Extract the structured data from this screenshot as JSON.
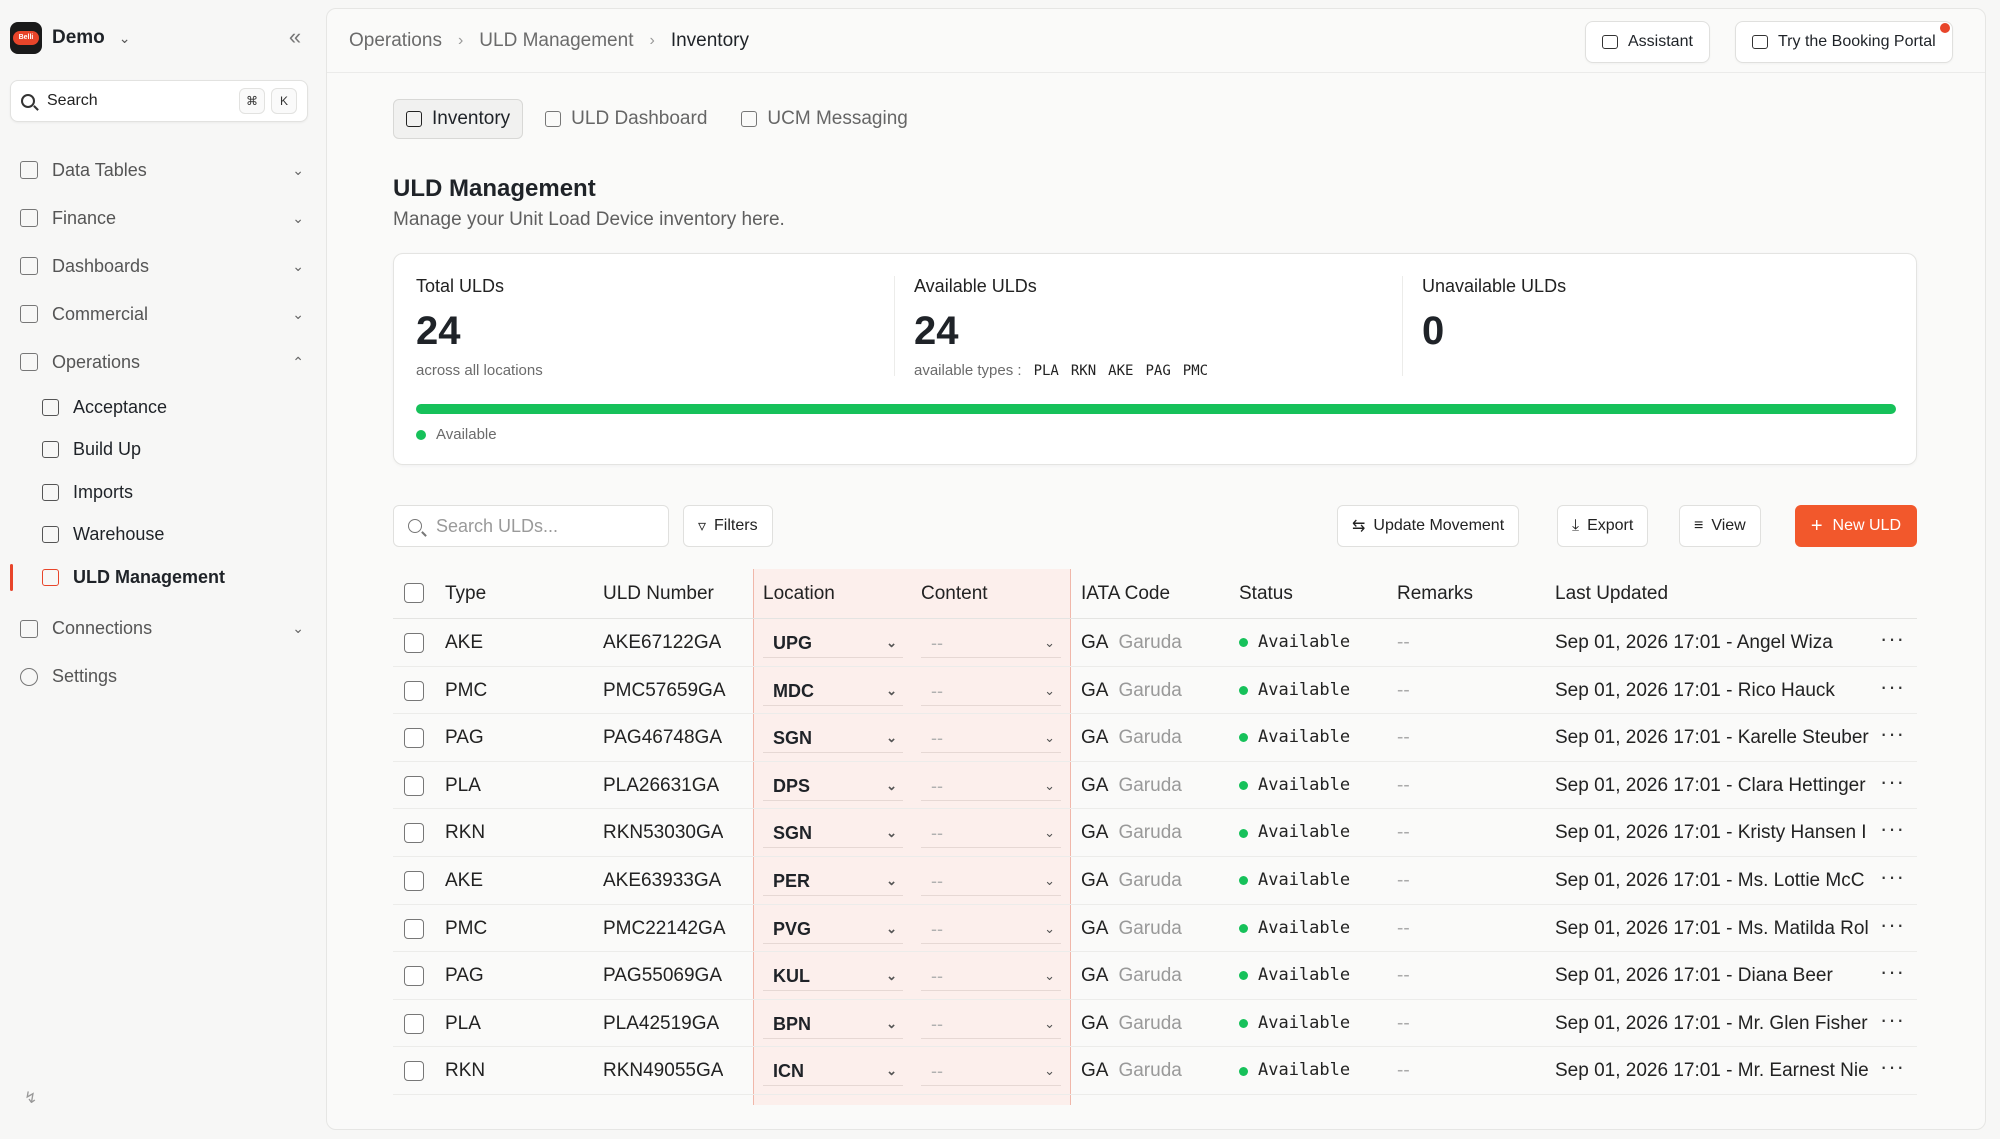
{
  "sidebar": {
    "workspace": "Demo",
    "logo_text": "Belli",
    "search_label": "Search",
    "search_keys": [
      "⌘",
      "K"
    ],
    "items": [
      {
        "label": "Data Tables"
      },
      {
        "label": "Finance"
      },
      {
        "label": "Dashboards"
      },
      {
        "label": "Commercial"
      },
      {
        "label": "Operations"
      }
    ],
    "ops_sub": [
      {
        "label": "Acceptance"
      },
      {
        "label": "Build Up"
      },
      {
        "label": "Imports"
      },
      {
        "label": "Warehouse"
      },
      {
        "label": "ULD Management"
      }
    ],
    "bottom_items": [
      {
        "label": "Connections"
      },
      {
        "label": "Settings"
      }
    ]
  },
  "header": {
    "breadcrumb": [
      "Operations",
      "ULD Management",
      "Inventory"
    ],
    "assistant_label": "Assistant",
    "booking_label": "Try the Booking Portal"
  },
  "tabs": [
    {
      "label": "Inventory"
    },
    {
      "label": "ULD Dashboard"
    },
    {
      "label": "UCM Messaging"
    }
  ],
  "page": {
    "title": "ULD Management",
    "subtitle": "Manage your Unit Load Device inventory here."
  },
  "stats": {
    "total": {
      "label": "Total ULDs",
      "value": "24",
      "note": "across all locations"
    },
    "available": {
      "label": "Available ULDs",
      "value": "24",
      "note": "available types :",
      "types": [
        "PLA",
        "RKN",
        "AKE",
        "PAG",
        "PMC"
      ]
    },
    "unavailable": {
      "label": "Unavailable ULDs",
      "value": "0"
    },
    "available_fraction": 1.0,
    "legend": "Available",
    "colors": {
      "available": "#16c15a",
      "accent": "#f2582c"
    }
  },
  "toolbar": {
    "search_placeholder": "Search ULDs...",
    "filters": "Filters",
    "update_movement": "Update Movement",
    "export": "Export",
    "view": "View",
    "new_uld": "New ULD"
  },
  "table": {
    "headers": [
      "Type",
      "ULD Number",
      "Location",
      "Content",
      "IATA Code",
      "Status",
      "Remarks",
      "Last Updated"
    ],
    "rows": [
      {
        "type": "AKE",
        "uld": "AKE67122GA",
        "location": "UPG",
        "content": "--",
        "iata": "GA",
        "airline": "Garuda",
        "status": "Available",
        "remarks": "--",
        "updated": "Sep 01, 2026 17:01 - Angel Wiza"
      },
      {
        "type": "PMC",
        "uld": "PMC57659GA",
        "location": "MDC",
        "content": "--",
        "iata": "GA",
        "airline": "Garuda",
        "status": "Available",
        "remarks": "--",
        "updated": "Sep 01, 2026 17:01 - Rico Hauck"
      },
      {
        "type": "PAG",
        "uld": "PAG46748GA",
        "location": "SGN",
        "content": "--",
        "iata": "GA",
        "airline": "Garuda",
        "status": "Available",
        "remarks": "--",
        "updated": "Sep 01, 2026 17:01 - Karelle Steuber"
      },
      {
        "type": "PLA",
        "uld": "PLA26631GA",
        "location": "DPS",
        "content": "--",
        "iata": "GA",
        "airline": "Garuda",
        "status": "Available",
        "remarks": "--",
        "updated": "Sep 01, 2026 17:01 - Clara Hettinger"
      },
      {
        "type": "RKN",
        "uld": "RKN53030GA",
        "location": "SGN",
        "content": "--",
        "iata": "GA",
        "airline": "Garuda",
        "status": "Available",
        "remarks": "--",
        "updated": "Sep 01, 2026 17:01 - Kristy Hansen I"
      },
      {
        "type": "AKE",
        "uld": "AKE63933GA",
        "location": "PER",
        "content": "--",
        "iata": "GA",
        "airline": "Garuda",
        "status": "Available",
        "remarks": "--",
        "updated": "Sep 01, 2026 17:01 - Ms. Lottie McC"
      },
      {
        "type": "PMC",
        "uld": "PMC22142GA",
        "location": "PVG",
        "content": "--",
        "iata": "GA",
        "airline": "Garuda",
        "status": "Available",
        "remarks": "--",
        "updated": "Sep 01, 2026 17:01 - Ms. Matilda Rol"
      },
      {
        "type": "PAG",
        "uld": "PAG55069GA",
        "location": "KUL",
        "content": "--",
        "iata": "GA",
        "airline": "Garuda",
        "status": "Available",
        "remarks": "--",
        "updated": "Sep 01, 2026 17:01 - Diana Beer"
      },
      {
        "type": "PLA",
        "uld": "PLA42519GA",
        "location": "BPN",
        "content": "--",
        "iata": "GA",
        "airline": "Garuda",
        "status": "Available",
        "remarks": "--",
        "updated": "Sep 01, 2026 17:01 - Mr. Glen Fisher"
      },
      {
        "type": "RKN",
        "uld": "RKN49055GA",
        "location": "ICN",
        "content": "--",
        "iata": "GA",
        "airline": "Garuda",
        "status": "Available",
        "remarks": "--",
        "updated": "Sep 01, 2026 17:01 - Mr. Earnest Nie"
      }
    ]
  }
}
